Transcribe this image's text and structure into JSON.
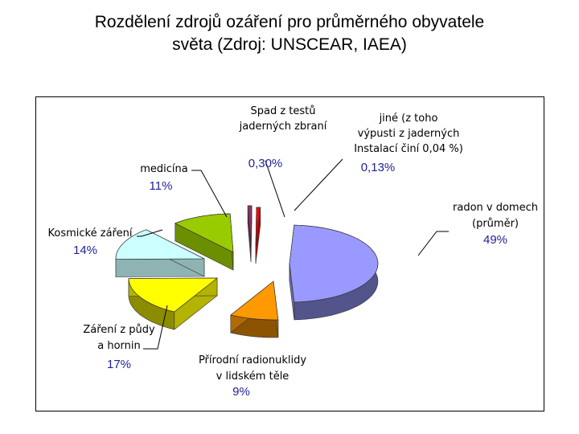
{
  "title": {
    "line1": "Rozdělení zdrojů ozáření pro průměrného obyvatele",
    "line2": "světa (Zdroj: UNSCEAR, IAEA)"
  },
  "chart_data": {
    "type": "pie",
    "style": "3d-exploded",
    "legend": "none",
    "slices": [
      {
        "key": "radon",
        "label_lines": [
          "radon v domech",
          "(průměr)"
        ],
        "value": 49,
        "value_text": "49%",
        "color": "#9999ff"
      },
      {
        "key": "natural",
        "label_lines": [
          "Přírodní radionuklidy",
          "v lidském těle"
        ],
        "value": 9,
        "value_text": "9%",
        "color": "#ff9900"
      },
      {
        "key": "ground",
        "label_lines": [
          "Záření z půdy",
          "a hornin"
        ],
        "value": 17,
        "value_text": "17%",
        "color": "#ffff00"
      },
      {
        "key": "cosmic",
        "label_lines": [
          "Kosmické záření"
        ],
        "value": 14,
        "value_text": "14%",
        "color": "#ccffff"
      },
      {
        "key": "medical",
        "label_lines": [
          "medicína"
        ],
        "value": 11,
        "value_text": "11%",
        "color": "#99cc00"
      },
      {
        "key": "fallout",
        "label_lines": [
          "Spad z testů",
          "jaderných zbraní"
        ],
        "value": 0.3,
        "value_text": "0,30%",
        "color": "#993366"
      },
      {
        "key": "other",
        "label_lines": [
          "jiné (z toho",
          "výpusti z jaderných",
          "Instalací činí 0,04 %)"
        ],
        "value": 0.13,
        "value_text": "0,13%",
        "color": "#ff0000"
      }
    ]
  }
}
